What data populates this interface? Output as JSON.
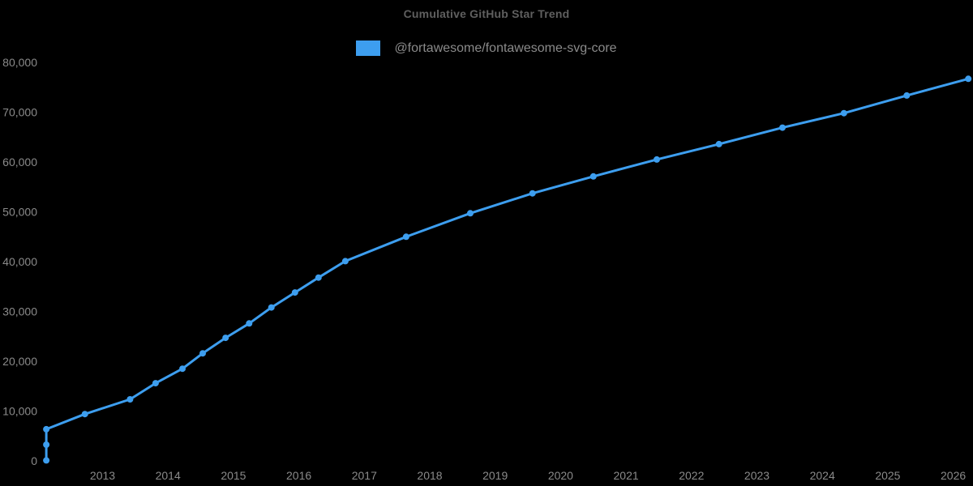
{
  "chart_data": {
    "type": "line",
    "title": "Cumulative GitHub Star Trend",
    "xlabel": "",
    "ylabel": "",
    "grid": false,
    "legend_position": "top-center",
    "xlim": [
      2012.0,
      2026.6
    ],
    "ylim": [
      0,
      85000
    ],
    "x_ticks": [
      2013,
      2014,
      2015,
      2016,
      2017,
      2018,
      2019,
      2020,
      2021,
      2022,
      2023,
      2024,
      2025,
      2026
    ],
    "y_ticks": [
      {
        "value": 0,
        "label": "0"
      },
      {
        "value": 10000,
        "label": "10,000"
      },
      {
        "value": 20000,
        "label": "20,000"
      },
      {
        "value": 30000,
        "label": "30,000"
      },
      {
        "value": 40000,
        "label": "40,000"
      },
      {
        "value": 50000,
        "label": "50,000"
      },
      {
        "value": 60000,
        "label": "60,000"
      },
      {
        "value": 70000,
        "label": "70,000"
      },
      {
        "value": 80000,
        "label": "80,000"
      }
    ],
    "series": [
      {
        "name": "@fortawesome/fontawesome-svg-core",
        "color": "#3d9eef",
        "x": [
          2012.14,
          2012.14,
          2012.14,
          2012.73,
          2013.42,
          2013.81,
          2014.22,
          2014.53,
          2014.88,
          2015.24,
          2015.58,
          2015.94,
          2016.3,
          2016.71,
          2017.64,
          2018.62,
          2019.57,
          2020.5,
          2021.47,
          2022.42,
          2023.39,
          2024.33,
          2025.29,
          2026.23
        ],
        "values": [
          100,
          3250,
          6350,
          9400,
          12350,
          15600,
          18500,
          21600,
          24700,
          27600,
          30800,
          33800,
          36800,
          40100,
          45000,
          49700,
          53700,
          57100,
          60500,
          63600,
          66900,
          69800,
          73350,
          76700
        ]
      }
    ]
  },
  "colors": {
    "background": "#000000",
    "line": "#3d9eef",
    "title_text": "#5f5f5f",
    "legend_text": "#8a8a8a",
    "tick_text": "#8a8a8a"
  }
}
